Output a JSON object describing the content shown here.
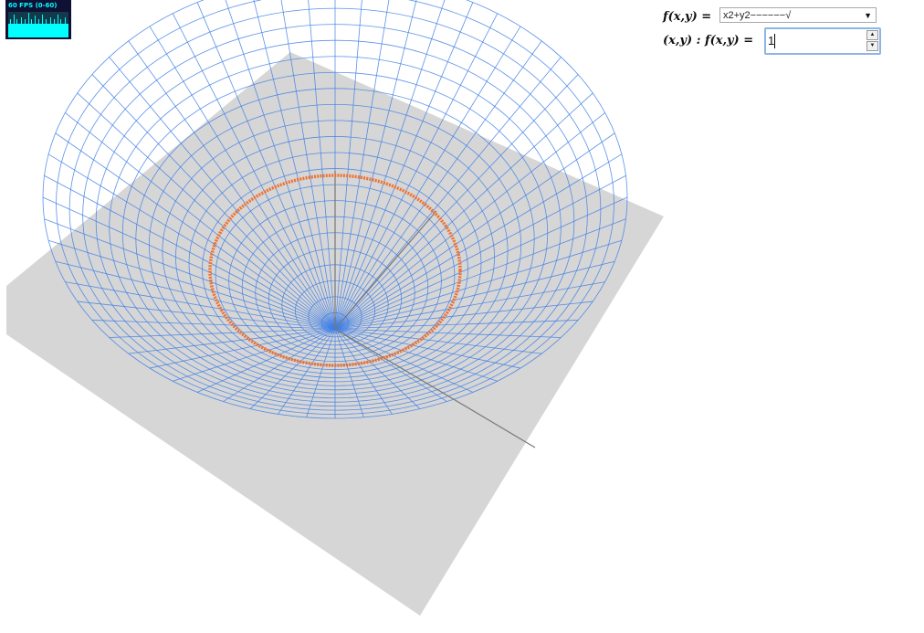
{
  "stats": {
    "fps_label": "60 FPS (0-60)",
    "graph_levels": [
      0.55,
      0.55,
      0.7,
      0.55,
      0.55,
      0.55,
      0.9,
      0.55,
      0.55,
      0.7,
      0.55,
      0.55,
      0.55,
      0.55,
      0.8,
      0.55,
      0.55,
      0.55,
      0.7,
      0.55,
      0.55,
      0.55,
      0.95,
      0.55,
      0.55,
      0.7,
      0.55,
      0.55,
      0.55,
      0.85,
      0.55,
      0.55,
      0.55,
      0.7,
      0.55,
      0.55,
      0.55,
      0.9,
      0.55,
      0.55,
      0.55,
      0.7,
      0.55,
      0.55,
      0.55,
      0.55,
      0.8,
      0.55,
      0.55,
      0.55,
      0.7,
      0.55,
      0.55,
      0.55,
      0.9,
      0.55,
      0.55,
      0.7,
      0.55,
      0.55,
      0.55,
      0.55,
      0.8,
      0.55,
      0.55,
      0.55
    ]
  },
  "controls": {
    "function_label": "f(x,y) =",
    "function_select_value": "x2+y2−−−−−−√",
    "level_label": "(x,y) : f(x,y) =",
    "level_value": "1"
  },
  "colors": {
    "surface_mesh": "#3f7fe6",
    "level_curve": "#f07030",
    "plane": "#d6d6d6",
    "axis": "#777777",
    "stats_bg": "#101034",
    "stats_fg": "#00ffff"
  },
  "scene": {
    "surface": "cone",
    "level_curve_value": 1
  }
}
